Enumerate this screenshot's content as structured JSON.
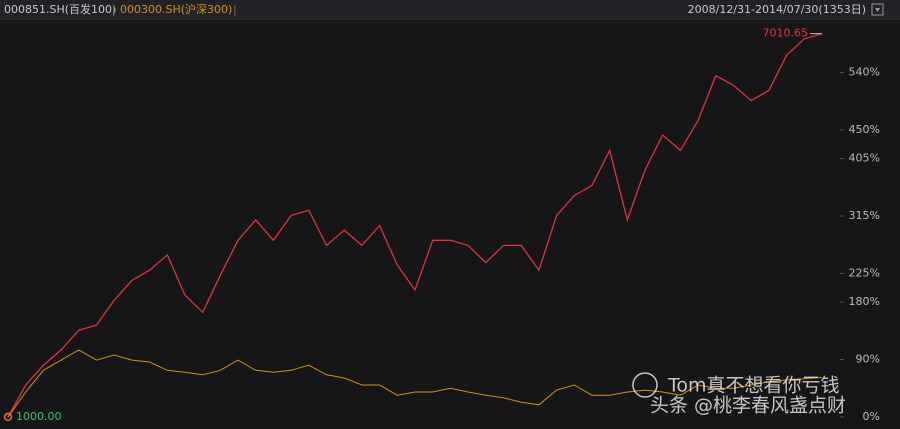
{
  "chart_data": {
    "type": "line",
    "series": [
      {
        "name": "000851.SH(百发100)",
        "color": "#e0333a",
        "values": [
          0,
          50,
          81,
          105,
          136,
          144,
          183,
          214,
          230,
          254,
          191,
          164,
          222,
          277,
          309,
          277,
          316,
          324,
          269,
          293,
          269,
          300,
          238,
          199,
          277,
          277,
          269,
          242,
          269,
          269,
          230,
          316,
          347,
          363,
          418,
          309,
          387,
          442,
          418,
          465,
          535,
          520,
          496,
          512,
          567,
          593,
          601.065
        ]
      },
      {
        "name": "000300.SH(沪深300)",
        "color": "#d4900f",
        "values": [
          0,
          39,
          73,
          89,
          105,
          89,
          97,
          89,
          86,
          73,
          70,
          66,
          73,
          89,
          73,
          70,
          73,
          81,
          66,
          61,
          50,
          50,
          34,
          39,
          39,
          45,
          39,
          34,
          30,
          23,
          19,
          42,
          50,
          34,
          34,
          39,
          42,
          39,
          34,
          50,
          45,
          45,
          50,
          55,
          58,
          60,
          62
        ]
      }
    ],
    "date_range": "2008/12/31-2014/07/30(1353日)",
    "start_label": "1000.00",
    "end_label": "7010.65",
    "ylim": [
      -19,
      624
    ],
    "yticks": [
      {
        "value": 0,
        "label": "0%"
      },
      {
        "value": 90,
        "label": "90%"
      },
      {
        "value": 180,
        "label": "180%"
      },
      {
        "value": 225,
        "label": "225%"
      },
      {
        "value": 315,
        "label": "315%"
      },
      {
        "value": 405,
        "label": "405%"
      },
      {
        "value": 450,
        "label": "450%"
      },
      {
        "value": 540,
        "label": "540%"
      }
    ],
    "watermark": [
      "Tom真不想看你亏钱",
      "头条 @桃李春风盏点财"
    ]
  }
}
